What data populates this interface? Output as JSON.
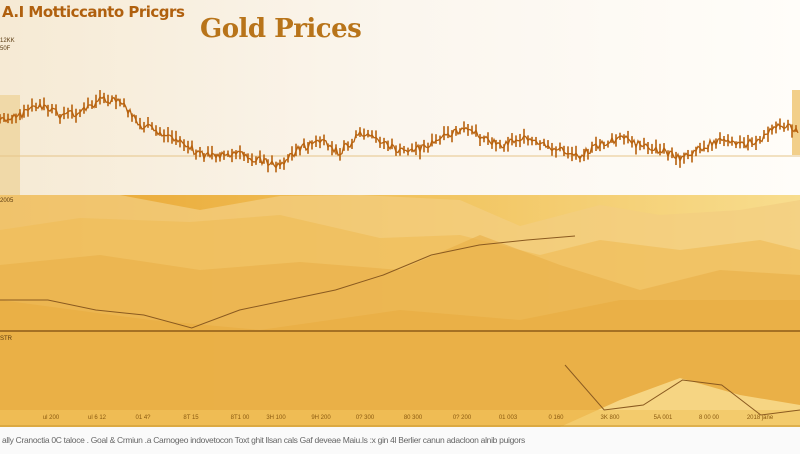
{
  "header": {
    "app_title": "A.I Motticcanto Pricgrs",
    "small_labels": [
      "12KK",
      "50F"
    ]
  },
  "chart_data": [
    {
      "type": "line",
      "title": "Gold Prices",
      "style": "candlestick-like price line",
      "x": [
        0,
        1,
        2,
        3,
        4,
        5,
        6,
        7,
        8,
        9,
        10,
        11,
        12,
        13,
        14,
        15,
        16,
        17,
        18,
        19,
        20,
        21,
        22,
        23,
        24,
        25,
        26,
        27,
        28,
        29,
        30,
        31,
        32,
        33,
        34,
        35,
        36,
        37,
        38,
        39,
        40
      ],
      "values": [
        50,
        55,
        65,
        55,
        58,
        70,
        68,
        45,
        38,
        30,
        15,
        15,
        15,
        10,
        5,
        22,
        28,
        18,
        35,
        30,
        18,
        22,
        30,
        40,
        35,
        25,
        32,
        25,
        20,
        15,
        25,
        32,
        25,
        20,
        12,
        22,
        30,
        25,
        30,
        45,
        40
      ],
      "ylim": [
        -30,
        120
      ]
    },
    {
      "type": "line",
      "title": "",
      "x": [
        0,
        1,
        2,
        3,
        4,
        5,
        6,
        7,
        8,
        9,
        10,
        11,
        12
      ],
      "values": [
        40,
        40,
        30,
        25,
        12,
        30,
        40,
        50,
        65,
        85,
        95,
        100,
        104
      ],
      "ylim": [
        0,
        140
      ],
      "axis_label": "2005"
    },
    {
      "type": "line",
      "title": "",
      "x": [
        0,
        1,
        2,
        3,
        4,
        5,
        6
      ],
      "values": [
        45,
        0,
        5,
        30,
        25,
        -5,
        0
      ],
      "ylim": [
        -10,
        60
      ],
      "axis_label": "STR"
    }
  ],
  "x_ticks": [
    "ul 200",
    "ul 6 12",
    "01 4?",
    "8T 15",
    "8T1 00",
    "3H 100",
    "9H 200",
    "0? 300",
    "80 300",
    "0? 200",
    "01 003",
    "0 160",
    "3K 800",
    "5A 001",
    "8 00 00",
    "2018 jane"
  ],
  "footer": "ally Cranoctia 0C taloce . Goal & Crmiun .a Carnogeo indovetocon Toxt ghit llsan cals Gaf deveae Maiu.ls :x gin 4l Berlier canun adacloon alnib puigors",
  "colors": {
    "line": "#b8620e",
    "accent": "#e8a020",
    "background": "#fdf8ef"
  }
}
